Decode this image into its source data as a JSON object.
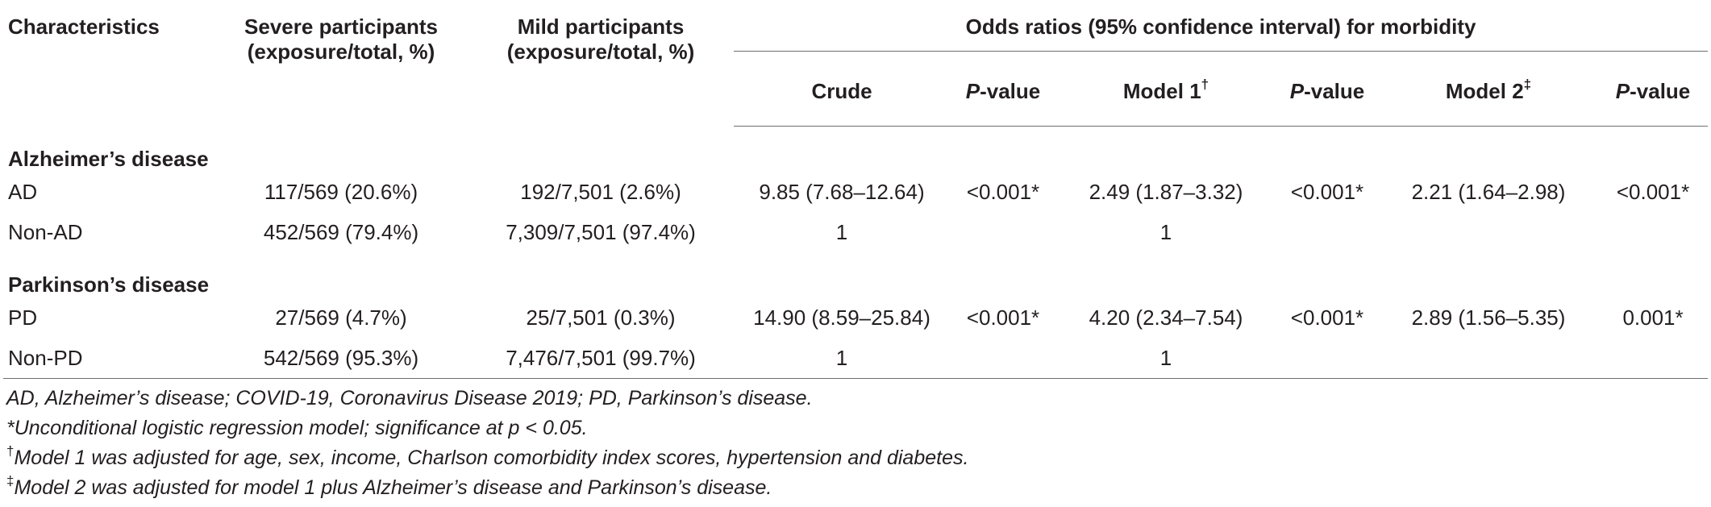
{
  "table": {
    "headers": {
      "characteristics": "Characteristics",
      "severe_line1": "Severe participants",
      "severe_line2": "(exposure/total, %)",
      "mild_line1": "Mild participants",
      "mild_line2": "(exposure/total, %)",
      "odds_title": "Odds ratios (95% confidence interval) for morbidity",
      "crude": "Crude",
      "p_prefix": "P",
      "p_suffix": "-value",
      "model1": "Model 1",
      "model1_mark": "†",
      "model2": "Model 2",
      "model2_mark": "‡"
    },
    "sections": [
      {
        "title": "Alzheimer’s disease",
        "rows": [
          {
            "label": "AD",
            "severe": "117/569 (20.6%)",
            "mild": "192/7,501 (2.6%)",
            "crude": "9.85 (7.68–12.64)",
            "p1": "<0.001*",
            "model1": "2.49 (1.87–3.32)",
            "p2": "<0.001*",
            "model2": "2.21 (1.64–2.98)",
            "p3": "<0.001*"
          },
          {
            "label": "Non-AD",
            "severe": "452/569 (79.4%)",
            "mild": "7,309/7,501 (97.4%)",
            "crude": "1",
            "p1": "",
            "model1": "1",
            "p2": "",
            "model2": "",
            "p3": ""
          }
        ]
      },
      {
        "title": "Parkinson’s disease",
        "rows": [
          {
            "label": "PD",
            "severe": "27/569 (4.7%)",
            "mild": "25/7,501 (0.3%)",
            "crude": "14.90 (8.59–25.84)",
            "p1": "<0.001*",
            "model1": "4.20 (2.34–7.54)",
            "p2": "<0.001*",
            "model2": "2.89 (1.56–5.35)",
            "p3": "0.001*"
          },
          {
            "label": "Non-PD",
            "severe": "542/569 (95.3%)",
            "mild": "7,476/7,501 (99.7%)",
            "crude": "1",
            "p1": "",
            "model1": "1",
            "p2": "",
            "model2": "",
            "p3": ""
          }
        ]
      }
    ]
  },
  "footnotes": {
    "abbreviations": "AD, Alzheimer’s disease; COVID-19, Coronavirus Disease 2019; PD, Parkinson’s disease.",
    "star": "*Unconditional logistic regression model; significance at p < 0.05.",
    "model1_mark": "†",
    "model1_text": "Model 1 was adjusted for age, sex, income, Charlson comorbidity index scores, hypertension and diabetes.",
    "model2_mark": "‡",
    "model2_text": "Model 2 was adjusted for model 1 plus Alzheimer’s disease and Parkinson’s disease."
  }
}
